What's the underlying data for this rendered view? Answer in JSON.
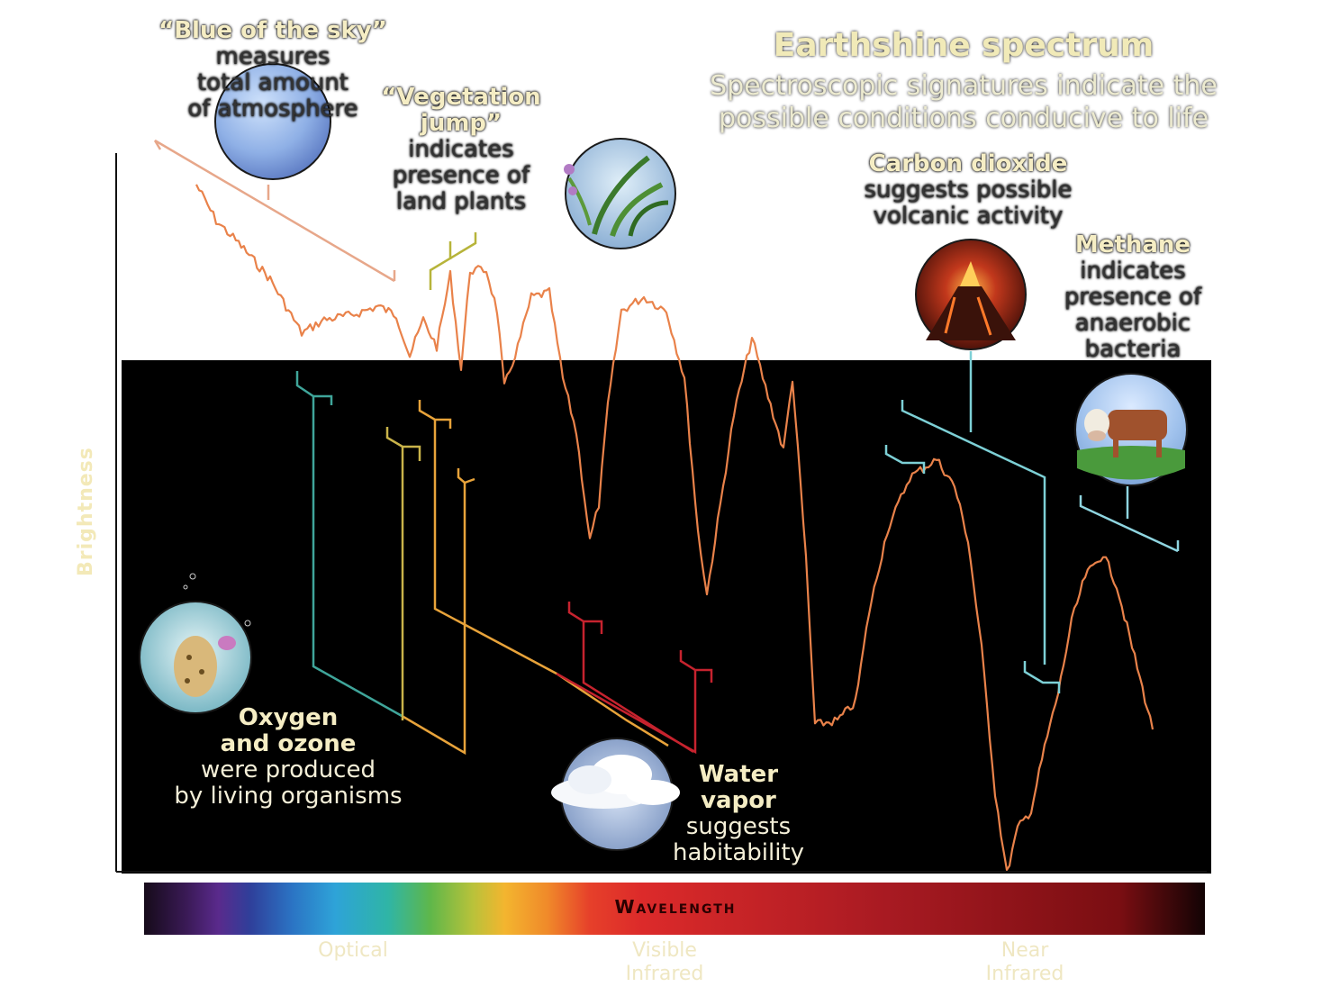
{
  "title": "Earthshine spectrum",
  "subtitle": "Spectroscopic signatures indicate the possible conditions conducive to life",
  "y_axis_label": "Brightness",
  "wavelength_label": "Wavelength",
  "wavelength_ticks": [
    {
      "lines": [
        "Optical"
      ]
    },
    {
      "lines": [
        "Visible",
        "Infrared"
      ]
    },
    {
      "lines": [
        "Near",
        "Infrared"
      ]
    }
  ],
  "annotations": {
    "blue_sky": {
      "heading": "“Blue of the sky”",
      "lines": [
        "measures",
        "total amount",
        "of atmosphere"
      ]
    },
    "vegetation": {
      "heading_lines": [
        "“Vegetation",
        "jump”"
      ],
      "lines": [
        "indicates",
        "presence of",
        "land plants"
      ]
    },
    "carbon_dioxide": {
      "heading": "Carbon dioxide",
      "lines": [
        "suggests possible",
        "volcanic activity"
      ]
    },
    "methane": {
      "heading": "Methane",
      "lines": [
        "indicates",
        "presence of",
        "anaerobic",
        "bacteria"
      ]
    },
    "oxygen": {
      "heading_lines": [
        "Oxygen",
        "and ozone"
      ],
      "lines": [
        "were produced",
        "by living organisms"
      ]
    },
    "water": {
      "heading_lines": [
        "Water",
        "vapor"
      ],
      "lines": [
        "suggests",
        "habitability"
      ]
    }
  },
  "icons": {
    "sky": "sky-sphere-icon",
    "plant": "plant-icon",
    "volcano": "volcano-icon",
    "cow": "cow-icon",
    "microbe": "microbe-icon",
    "cloud": "cloud-icon"
  },
  "colors": {
    "spectrum_line": "#e9824a",
    "oxygen_bracket": "#3fa59a",
    "ozone_bracket": "#c9b34a",
    "vegetation_bracket": "#e8a33a",
    "water_bracket": "#c6232e",
    "co2_bracket": "#7dd0d6",
    "methane_bracket": "#8fd5e0",
    "blue_sky_bracket": "#e7a78a"
  }
}
